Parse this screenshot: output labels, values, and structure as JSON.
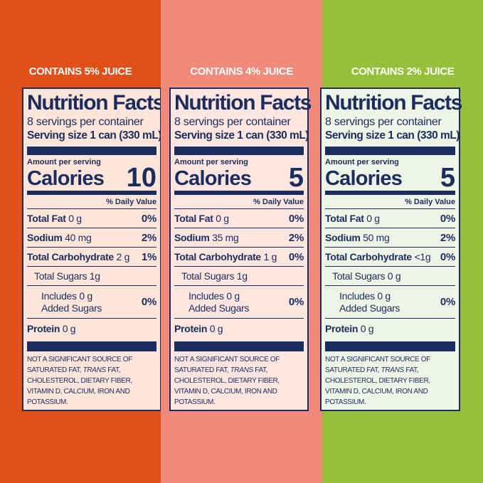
{
  "colors": {
    "col1_bg": "#e2501a",
    "col2_bg": "#f08b7c",
    "col3_bg": "#97c03a",
    "panel1_bg": "#fde6d9",
    "panel2_bg": "#fde6e0",
    "panel3_bg": "#eef5e6",
    "navy": "#1b2c5f"
  },
  "columns": [
    {
      "juice_label": "CONTAINS 5% JUICE",
      "title": "Nutrition Facts",
      "servings": "8 servings per container",
      "serving_size": "Serving size 1 can (330 mL)",
      "amount_per_serving": "Amount per serving",
      "calories_label": "Calories",
      "calories_value": "10",
      "dv_header": "% Daily Value",
      "total_fat": {
        "label": "Total Fat",
        "amount": "0 g",
        "pct": "0%"
      },
      "sodium": {
        "label": "Sodium",
        "amount": "40 mg",
        "pct": "2%"
      },
      "carb": {
        "label": "Total Carbohydrate",
        "amount": "2 g",
        "pct": "1%"
      },
      "sugars": {
        "label": "Total Sugars 1g"
      },
      "added_sugars": {
        "line1": "Includes 0 g",
        "line2": "Added Sugars",
        "pct": "0%"
      },
      "protein": {
        "label": "Protein",
        "amount": "0 g"
      },
      "footnote_a": "NOT A SIGNIFICANT SOURCE OF SATURATED FAT,",
      "footnote_trans": "TRANS",
      "footnote_b": "FAT, CHOLESTEROL, DIETARY FIBER, VITAMIN D, CALCIUM, IRON AND POTASSIUM."
    },
    {
      "juice_label": "CONTAINS 4% JUICE",
      "title": "Nutrition Facts",
      "servings": "8 servings per container",
      "serving_size": "Serving size 1 can (330 mL)",
      "amount_per_serving": "Amount per serving",
      "calories_label": "Calories",
      "calories_value": "5",
      "dv_header": "% Daily Value",
      "total_fat": {
        "label": "Total Fat",
        "amount": "0 g",
        "pct": "0%"
      },
      "sodium": {
        "label": "Sodium",
        "amount": "35 mg",
        "pct": "2%"
      },
      "carb": {
        "label": "Total Carbohydrate",
        "amount": "1 g",
        "pct": "0%"
      },
      "sugars": {
        "label": "Total Sugars 1g"
      },
      "added_sugars": {
        "line1": "Includes 0 g",
        "line2": "Added Sugars",
        "pct": "0%"
      },
      "protein": {
        "label": "Protein",
        "amount": "0 g"
      },
      "footnote_a": "NOT A SIGNIFICANT SOURCE OF SATURATED FAT,",
      "footnote_trans": "TRANS",
      "footnote_b": "FAT, CHOLESTEROL, DIETARY FIBER, VITAMIN D, CALCIUM, IRON AND POTASSIUM."
    },
    {
      "juice_label": "CONTAINS 2% JUICE",
      "title": "Nutrition Facts",
      "servings": "8 servings per container",
      "serving_size": "Serving size 1 can (330 mL)",
      "amount_per_serving": "Amount per serving",
      "calories_label": "Calories",
      "calories_value": "5",
      "dv_header": "% Daily Value",
      "total_fat": {
        "label": "Total Fat",
        "amount": "0 g",
        "pct": "0%"
      },
      "sodium": {
        "label": "Sodium",
        "amount": "50 mg",
        "pct": "2%"
      },
      "carb": {
        "label": "Total Carbohydrate",
        "amount": "<1g",
        "pct": "0%"
      },
      "sugars": {
        "label": "Total Sugars 0 g"
      },
      "added_sugars": {
        "line1": "Includes 0 g",
        "line2": "Added Sugars",
        "pct": "0%"
      },
      "protein": {
        "label": "Protein",
        "amount": "0 g"
      },
      "footnote_a": "NOT A SIGNIFICANT SOURCE OF SATURATED FAT,",
      "footnote_trans": "TRANS",
      "footnote_b": "FAT, CHOLESTEROL, DIETARY FIBER, VITAMIN D, CALCIUM, IRON AND POTASSIUM."
    }
  ]
}
